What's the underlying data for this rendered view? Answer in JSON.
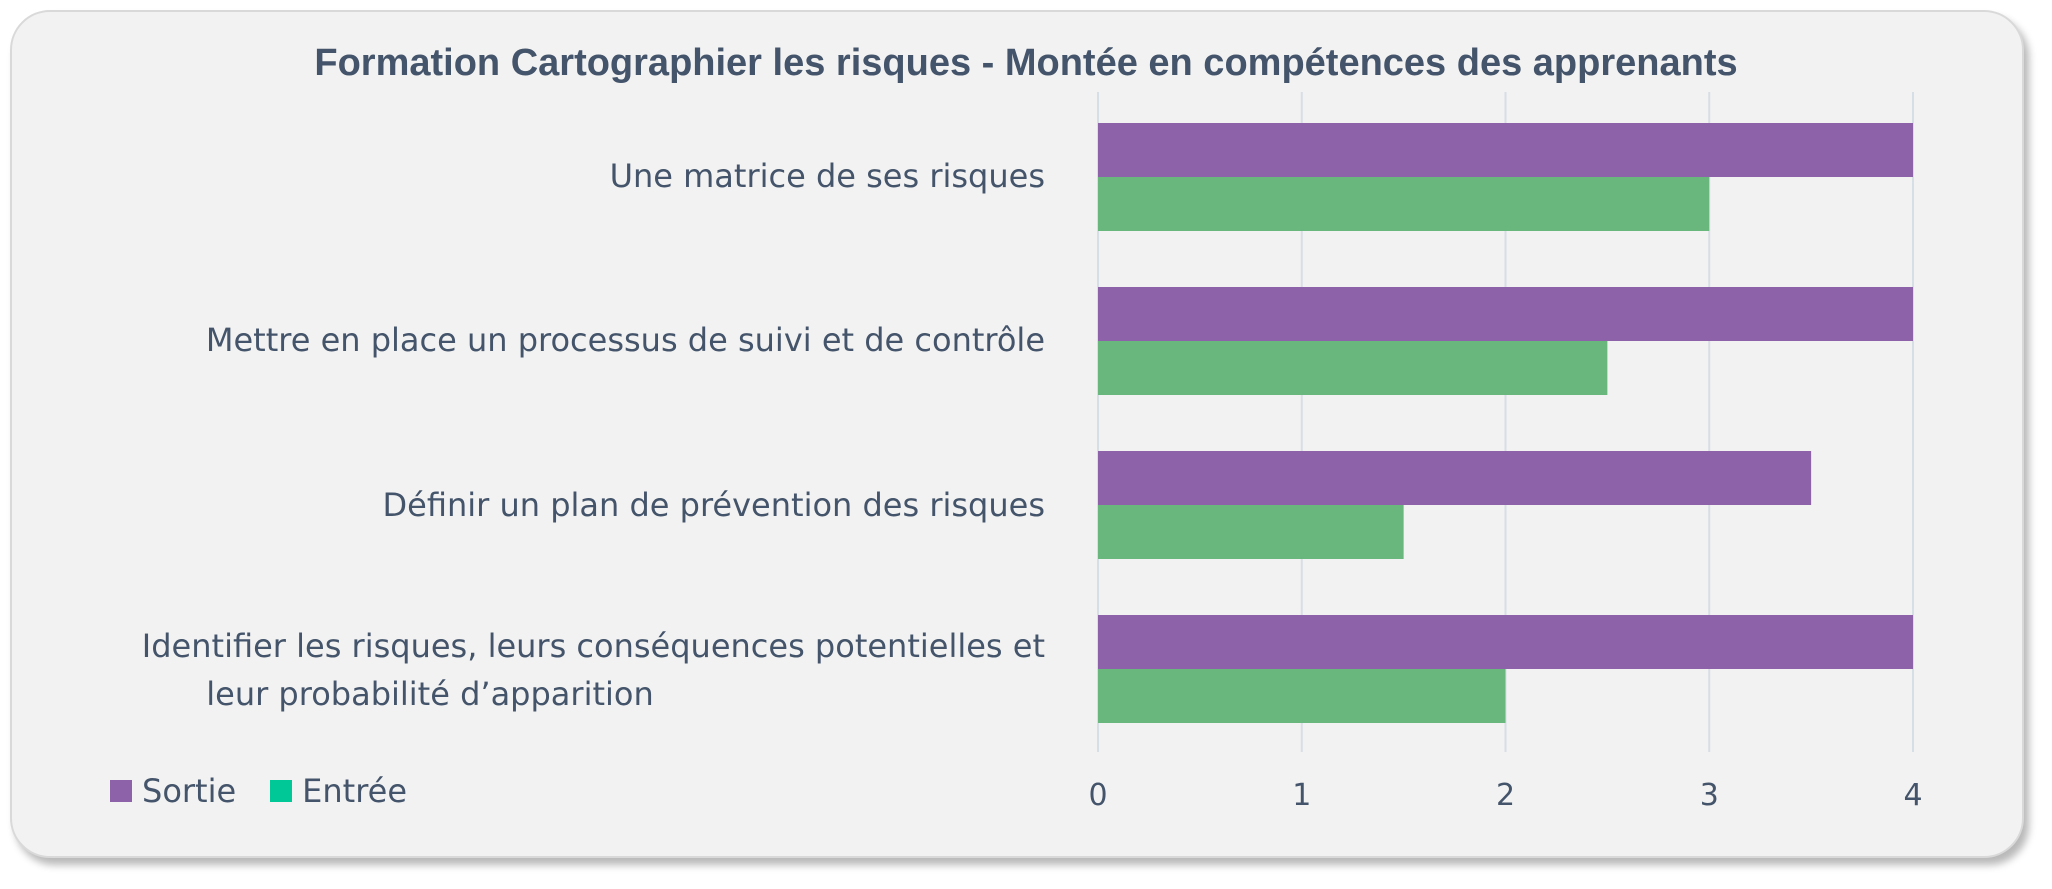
{
  "chart_data": {
    "type": "bar",
    "orientation": "horizontal",
    "title": "Formation Cartographier les risques - Montée en compétences des apprenants",
    "categories": [
      "Une matrice de ses risques",
      "Mettre en place un processus de suivi et de contrôle",
      "Définir un plan de prévention des risques",
      "Identifier les risques, leurs conséquences potentielles et leur probabilité d’apparition"
    ],
    "category_lines": [
      [
        "Une matrice de ses risques"
      ],
      [
        "Mettre en place un processus de suivi et de contrôle"
      ],
      [
        "Définir un plan de prévention des risques"
      ],
      [
        "Identifier les risques, leurs conséquences potentielles et",
        "leur probabilité d’apparition"
      ]
    ],
    "series": [
      {
        "name": "Sortie",
        "color": "#8e62a9",
        "values": [
          4,
          4,
          3.5,
          4
        ]
      },
      {
        "name": "Entrée",
        "color": "#6ab77d",
        "values": [
          3,
          2.5,
          1.5,
          2
        ]
      }
    ],
    "legend_colors": [
      "#8e62a9",
      "#00c896"
    ],
    "xlim": [
      0,
      4
    ],
    "xticks": [
      "0",
      "1",
      "2",
      "3",
      "4"
    ],
    "grid": true,
    "legend_position": "bottom-left",
    "xlabel": "",
    "ylabel": ""
  }
}
